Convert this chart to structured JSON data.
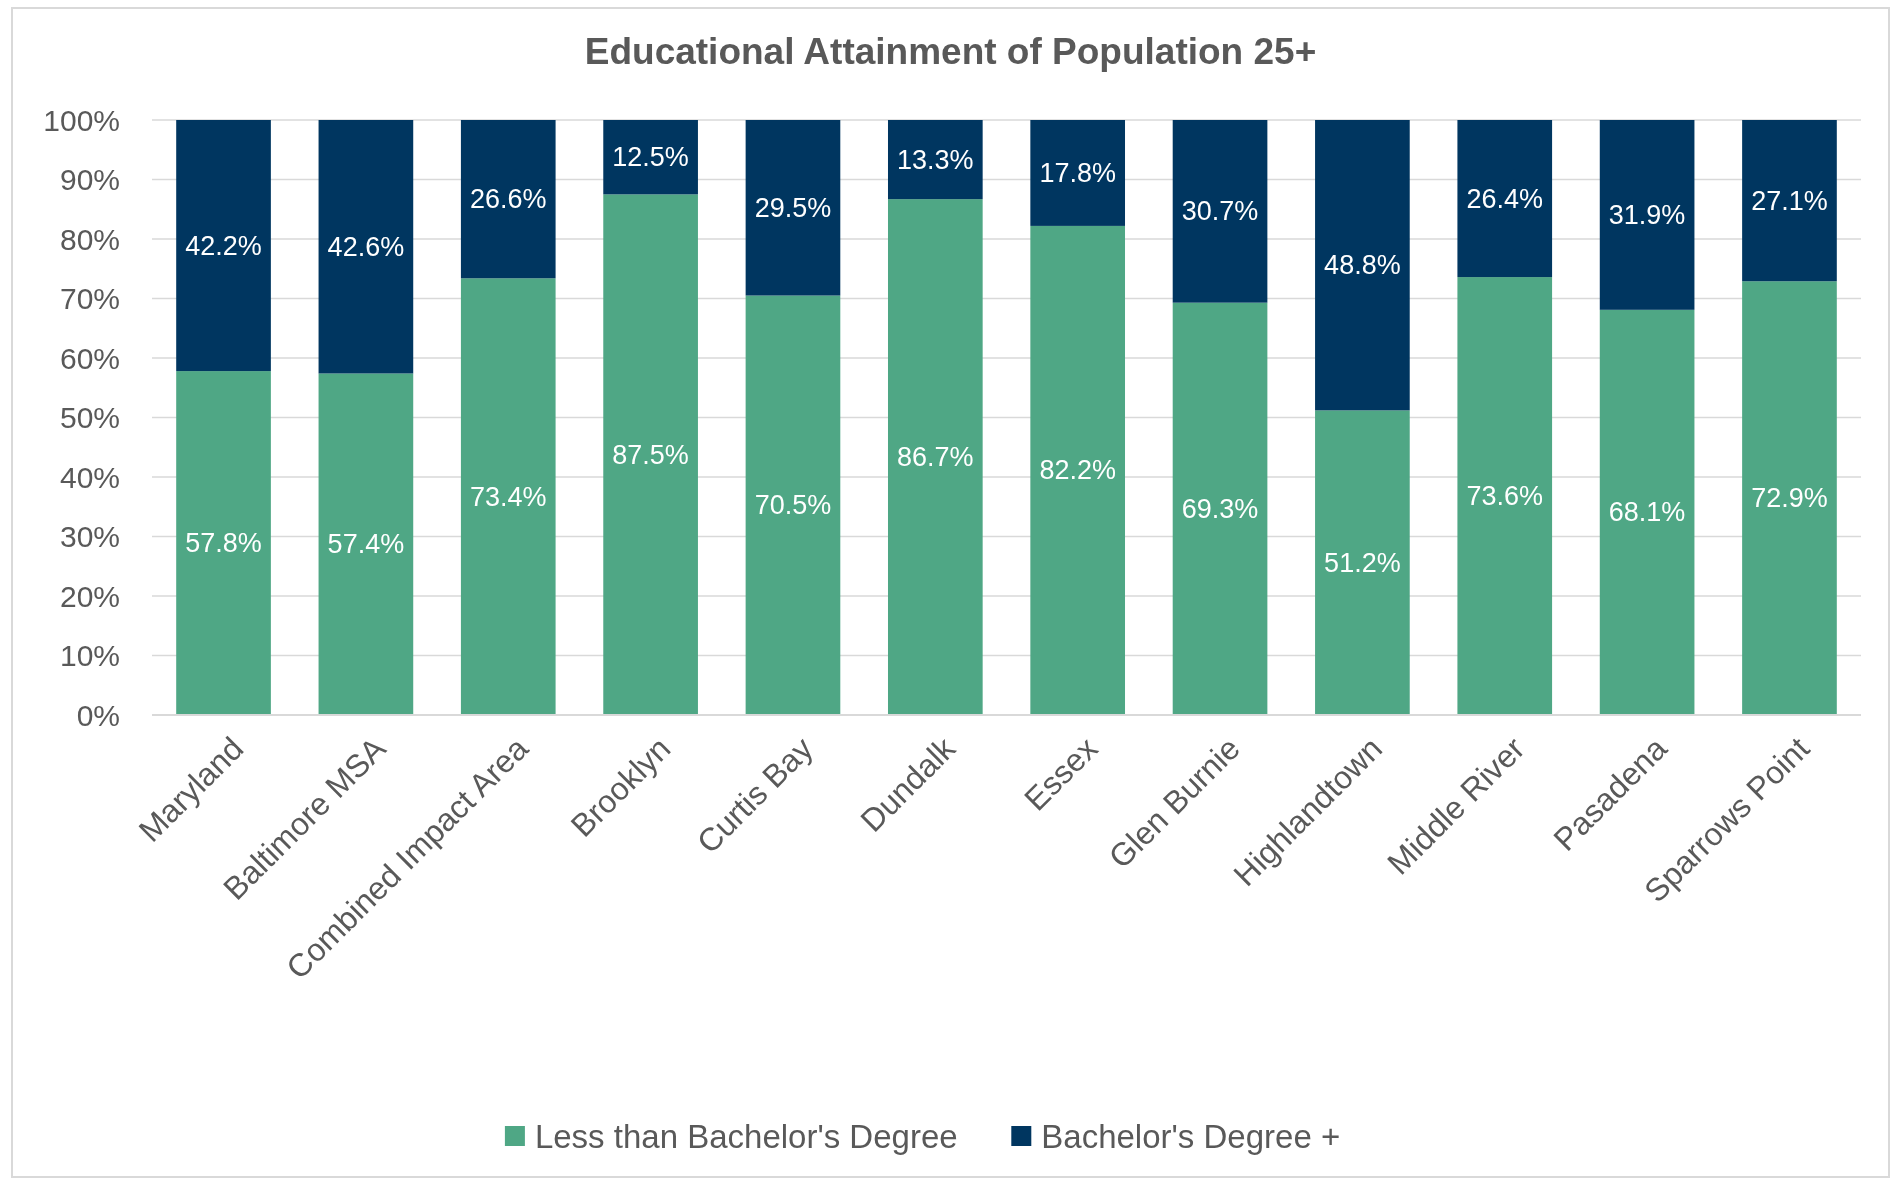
{
  "chart_data": {
    "type": "bar",
    "title": "Educational Attainment of Population 25+",
    "stacked": true,
    "categories": [
      "Maryland",
      "Baltimore MSA",
      "Combined Impact Area",
      "Brooklyn",
      "Curtis Bay",
      "Dundalk",
      "Essex",
      "Glen Burnie",
      "Highlandtown",
      "Middle River",
      "Pasadena",
      "Sparrows Point"
    ],
    "series": [
      {
        "name": "Less than Bachelor's Degree",
        "color": "#4fa785",
        "values": [
          57.8,
          57.4,
          73.4,
          87.5,
          70.5,
          86.7,
          82.2,
          69.3,
          51.2,
          73.6,
          68.1,
          72.9
        ],
        "value_labels": [
          "57.8%",
          "57.4%",
          "73.4%",
          "87.5%",
          "70.5%",
          "86.7%",
          "82.2%",
          "69.3%",
          "51.2%",
          "73.6%",
          "68.1%",
          "72.9%"
        ]
      },
      {
        "name": "Bachelor's Degree +",
        "color": "#003660",
        "values": [
          42.2,
          42.6,
          26.6,
          12.5,
          29.5,
          13.3,
          17.8,
          30.7,
          48.8,
          26.4,
          31.9,
          27.1
        ],
        "value_labels": [
          "42.2%",
          "42.6%",
          "26.6%",
          "12.5%",
          "29.5%",
          "13.3%",
          "17.8%",
          "30.7%",
          "48.8%",
          "26.4%",
          "31.9%",
          "27.1%"
        ]
      }
    ],
    "ylim": [
      0,
      100
    ],
    "yticks": [
      {
        "value": 0,
        "label": "0%"
      },
      {
        "value": 10,
        "label": "10%"
      },
      {
        "value": 20,
        "label": "20%"
      },
      {
        "value": 30,
        "label": "30%"
      },
      {
        "value": 40,
        "label": "40%"
      },
      {
        "value": 50,
        "label": "50%"
      },
      {
        "value": 60,
        "label": "60%"
      },
      {
        "value": 70,
        "label": "70%"
      },
      {
        "value": 80,
        "label": "80%"
      },
      {
        "value": 90,
        "label": "90%"
      },
      {
        "value": 100,
        "label": "100%"
      }
    ],
    "grid": "y",
    "legend": "bottom"
  }
}
